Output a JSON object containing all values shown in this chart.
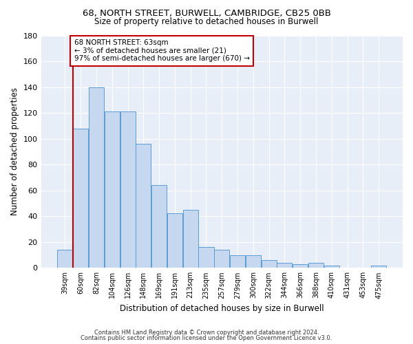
{
  "title_line1": "68, NORTH STREET, BURWELL, CAMBRIDGE, CB25 0BB",
  "title_line2": "Size of property relative to detached houses in Burwell",
  "xlabel": "Distribution of detached houses by size in Burwell",
  "ylabel": "Number of detached properties",
  "categories": [
    "39sqm",
    "60sqm",
    "82sqm",
    "104sqm",
    "126sqm",
    "148sqm",
    "169sqm",
    "191sqm",
    "213sqm",
    "235sqm",
    "257sqm",
    "279sqm",
    "300sqm",
    "322sqm",
    "344sqm",
    "366sqm",
    "388sqm",
    "410sqm",
    "431sqm",
    "453sqm",
    "475sqm"
  ],
  "values": [
    14,
    108,
    140,
    121,
    121,
    96,
    64,
    42,
    45,
    16,
    14,
    10,
    10,
    6,
    4,
    3,
    4,
    2,
    0,
    0,
    2
  ],
  "bar_color": "#c5d8f0",
  "bar_edge_color": "#5b9bd5",
  "red_line_index": 1,
  "annotation_line1": "68 NORTH STREET: 63sqm",
  "annotation_line2": "← 3% of detached houses are smaller (21)",
  "annotation_line3": "97% of semi-detached houses are larger (670) →",
  "annotation_box_color": "white",
  "annotation_border_color": "#c00000",
  "ylim": [
    0,
    180
  ],
  "yticks": [
    0,
    20,
    40,
    60,
    80,
    100,
    120,
    140,
    160,
    180
  ],
  "background_color": "#e8eef8",
  "grid_color": "white",
  "footnote_line1": "Contains HM Land Registry data © Crown copyright and database right 2024.",
  "footnote_line2": "Contains public sector information licensed under the Open Government Licence v3.0."
}
